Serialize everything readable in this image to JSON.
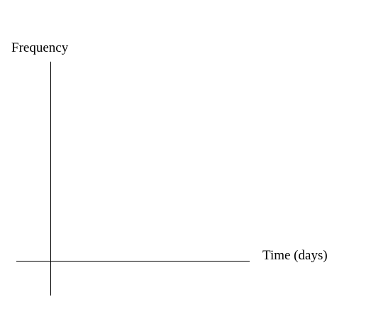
{
  "chart_data": {
    "type": "line",
    "title": "",
    "xlabel": "Time (days)",
    "ylabel": "Frequency",
    "series": [],
    "grid": false,
    "ticks": false,
    "axis_color": "#000000"
  }
}
